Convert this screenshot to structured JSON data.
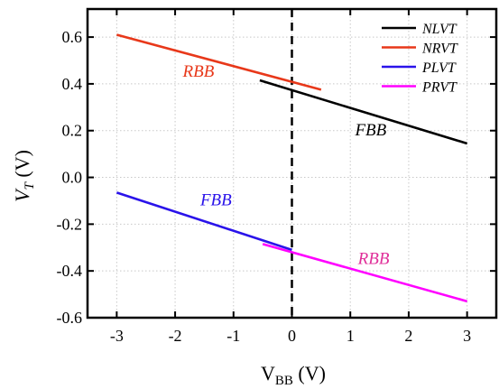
{
  "chart_data": {
    "type": "line",
    "xlabel_main": "V",
    "xlabel_sub": "BB",
    "xlabel_unit": " (V)",
    "ylabel_main": "V",
    "ylabel_sub": "T",
    "ylabel_unit": " (V)",
    "xlim": [
      -3.5,
      3.5
    ],
    "ylim": [
      -0.6,
      0.72
    ],
    "x_ticks": [
      -3,
      -2,
      -1,
      0,
      1,
      2,
      3
    ],
    "x_tick_labels": [
      "-3",
      "-2",
      "-1",
      "0",
      "1",
      "2",
      "3"
    ],
    "y_ticks": [
      0.6,
      0.4,
      0.2,
      0.0,
      -0.2,
      -0.4,
      -0.6
    ],
    "y_tick_labels": [
      "0.6",
      "0.4",
      "0.2",
      "0.0",
      "-0.2",
      "-0.4",
      "-0.6"
    ],
    "grid": true,
    "legend_position": "top-right",
    "zero_line_x": 0,
    "series": [
      {
        "name": "NLVT",
        "color": "#000000",
        "x": [
          -0.55,
          3.0
        ],
        "y": [
          0.415,
          0.145
        ]
      },
      {
        "name": "NRVT",
        "color": "#e8381a",
        "x": [
          -3.0,
          0.5
        ],
        "y": [
          0.61,
          0.375
        ]
      },
      {
        "name": "PLVT",
        "color": "#2a13ea",
        "x": [
          -3.0,
          0.0
        ],
        "y": [
          -0.065,
          -0.31
        ]
      },
      {
        "name": "PRVT",
        "color": "#ff00ff",
        "x": [
          -0.5,
          3.0
        ],
        "y": [
          -0.285,
          -0.53
        ]
      }
    ],
    "annotations": [
      {
        "text": "RBB",
        "x": -1.6,
        "y": 0.43,
        "color": "#e8381a"
      },
      {
        "text": "FBB",
        "x": 1.35,
        "y": 0.18,
        "color": "#000000"
      },
      {
        "text": "FBB",
        "x": -1.3,
        "y": -0.12,
        "color": "#2a13ea"
      },
      {
        "text": "RBB",
        "x": 1.4,
        "y": -0.37,
        "color": "#e0309a"
      }
    ]
  }
}
